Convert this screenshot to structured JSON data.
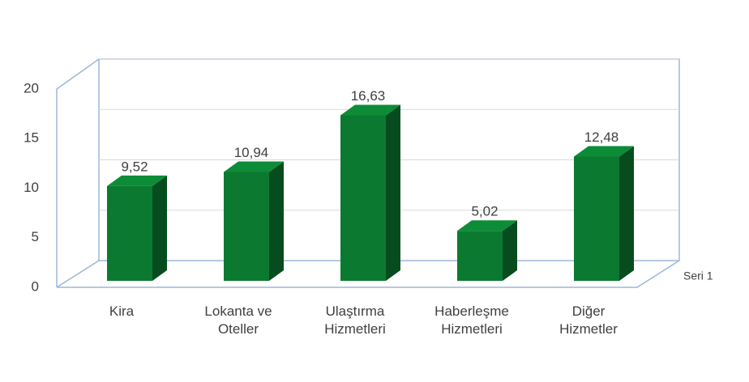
{
  "chart_data": {
    "type": "bar",
    "categories": [
      "Kira",
      "Lokanta ve Oteller",
      "Ulaştırma Hizmetleri",
      "Haberleşme Hizmetleri",
      "Diğer Hizmetler"
    ],
    "series": [
      {
        "name": "Seri 1",
        "color": "#0b7a30",
        "values": [
          9.52,
          10.94,
          16.63,
          5.02,
          12.48
        ],
        "value_labels": [
          "9,52",
          "10,94",
          "16,63",
          "5,02",
          "12,48"
        ]
      }
    ],
    "ylim": [
      0,
      20
    ],
    "yticks": [
      0,
      5,
      10,
      15,
      20
    ],
    "grid": true
  }
}
